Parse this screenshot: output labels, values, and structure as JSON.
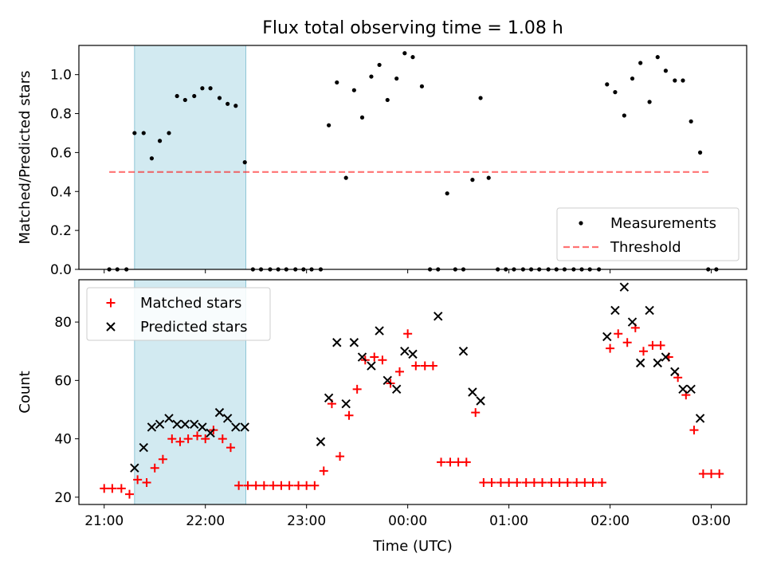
{
  "figure": {
    "title": "Flux total observing time = 1.08 h"
  },
  "chart_data": [
    {
      "type": "scatter",
      "name": "top",
      "xlabel": "",
      "ylabel": "Matched/Predicted stars",
      "xlim": [
        -0.25,
        6.35
      ],
      "ylim": [
        0,
        1.15
      ],
      "yticks": [
        0.0,
        0.2,
        0.4,
        0.6,
        0.8,
        1.0
      ],
      "ytick_labels": [
        "0.0",
        "0.2",
        "0.4",
        "0.6",
        "0.8",
        "1.0"
      ],
      "xticks": [
        0,
        1,
        2,
        3,
        4,
        5,
        6
      ],
      "shaded_span": {
        "x": [
          0.3,
          1.4
        ],
        "color": "#add8e6"
      },
      "threshold": {
        "y": 0.5,
        "x": [
          0.05,
          6.0
        ],
        "color": "#ff0000"
      },
      "legend": {
        "placement": "lower right",
        "entries": [
          "Measurements",
          "Threshold"
        ]
      },
      "series": [
        {
          "name": "Measurements",
          "marker": "dot",
          "color": "#000000",
          "x": [
            0.05,
            0.13,
            0.22,
            0.3,
            0.39,
            0.47,
            0.55,
            0.64,
            0.72,
            0.8,
            0.89,
            0.97,
            1.05,
            1.14,
            1.22,
            1.3,
            1.39,
            1.47,
            1.55,
            1.64,
            1.72,
            1.8,
            1.89,
            1.97,
            2.05,
            2.14,
            2.22,
            2.3,
            2.39,
            2.47,
            2.55,
            2.64,
            2.72,
            2.8,
            2.89,
            2.97,
            3.05,
            3.14,
            3.22,
            3.3,
            3.39,
            3.47,
            3.55,
            3.64,
            3.72,
            3.8,
            3.89,
            3.97,
            4.05,
            4.14,
            4.22,
            4.3,
            4.39,
            4.47,
            4.55,
            4.64,
            4.72,
            4.8,
            4.89,
            4.97,
            5.05,
            5.14,
            5.22,
            5.3,
            5.39,
            5.47,
            5.55,
            5.64,
            5.72,
            5.8,
            5.89,
            5.97,
            6.05
          ],
          "y": [
            0.0,
            0.0,
            0.0,
            0.7,
            0.7,
            0.57,
            0.66,
            0.7,
            0.89,
            0.87,
            0.89,
            0.93,
            0.93,
            0.88,
            0.85,
            0.84,
            0.55,
            0.0,
            0.0,
            0.0,
            0.0,
            0.0,
            0.0,
            0.0,
            0.0,
            0.0,
            0.74,
            0.96,
            0.47,
            0.92,
            0.78,
            0.99,
            1.05,
            0.87,
            0.98,
            1.11,
            1.09,
            0.94,
            0.0,
            0.0,
            0.39,
            0.0,
            0.0,
            0.46,
            0.88,
            0.47,
            0.0,
            0.0,
            0.0,
            0.0,
            0.0,
            0.0,
            0.0,
            0.0,
            0.0,
            0.0,
            0.0,
            0.0,
            0.0,
            0.95,
            0.91,
            0.79,
            0.98,
            1.06,
            0.86,
            1.09,
            1.02,
            0.97,
            0.97,
            0.76,
            0.6,
            0.0,
            0.0
          ]
        }
      ]
    },
    {
      "type": "scatter",
      "name": "bottom",
      "xlabel": "Time (UTC)",
      "ylabel": "Count",
      "xlim": [
        -0.25,
        6.35
      ],
      "ylim": [
        17.5,
        94.5
      ],
      "yticks": [
        20,
        40,
        60,
        80
      ],
      "ytick_labels": [
        "20",
        "40",
        "60",
        "80"
      ],
      "xticks": [
        0,
        1,
        2,
        3,
        4,
        5,
        6
      ],
      "xtick_labels": [
        "21:00",
        "22:00",
        "23:00",
        "00:00",
        "01:00",
        "02:00",
        "03:00"
      ],
      "shaded_span": {
        "x": [
          0.3,
          1.4
        ],
        "color": "#add8e6"
      },
      "legend": {
        "placement": "upper left",
        "entries": [
          "Matched stars",
          "Predicted stars"
        ]
      },
      "series": [
        {
          "name": "Matched stars",
          "marker": "plus",
          "color": "#ff0000",
          "x": [
            0.0,
            0.08,
            0.17,
            0.25,
            0.33,
            0.42,
            0.5,
            0.58,
            0.67,
            0.75,
            0.83,
            0.92,
            1.0,
            1.08,
            1.17,
            1.25,
            1.33,
            1.42,
            1.5,
            1.58,
            1.67,
            1.75,
            1.83,
            1.92,
            2.0,
            2.08,
            2.17,
            2.25,
            2.33,
            2.42,
            2.5,
            2.58,
            2.67,
            2.75,
            2.83,
            2.92,
            3.0,
            3.08,
            3.17,
            3.25,
            3.33,
            3.42,
            3.5,
            3.58,
            3.67,
            3.75,
            3.83,
            3.92,
            4.0,
            4.08,
            4.17,
            4.25,
            4.33,
            4.42,
            4.5,
            4.58,
            4.67,
            4.75,
            4.83,
            4.92,
            5.0,
            5.08,
            5.17,
            5.25,
            5.33,
            5.42,
            5.5,
            5.58,
            5.67,
            5.75,
            5.83,
            5.92,
            6.0,
            6.08
          ],
          "y": [
            23,
            23,
            23,
            21,
            26,
            25,
            30,
            33,
            40,
            39,
            40,
            41,
            40,
            43,
            40,
            37,
            24,
            24,
            24,
            24,
            24,
            24,
            24,
            24,
            24,
            24,
            29,
            52,
            34,
            48,
            57,
            67,
            68,
            67,
            59,
            63,
            76,
            65,
            65,
            65,
            32,
            32,
            32,
            32,
            49,
            25,
            25,
            25,
            25,
            25,
            25,
            25,
            25,
            25,
            25,
            25,
            25,
            25,
            25,
            25,
            71,
            76,
            73,
            78,
            70,
            72,
            72,
            68,
            61,
            55,
            43,
            28,
            28,
            28
          ]
        },
        {
          "name": "Predicted stars",
          "marker": "x",
          "color": "#000000",
          "x": [
            0.3,
            0.39,
            0.47,
            0.55,
            0.64,
            0.72,
            0.8,
            0.89,
            0.97,
            1.05,
            1.14,
            1.22,
            1.3,
            1.39,
            2.14,
            2.22,
            2.3,
            2.39,
            2.47,
            2.55,
            2.64,
            2.72,
            2.8,
            2.89,
            2.97,
            3.05,
            3.3,
            3.55,
            3.64,
            3.72,
            4.97,
            5.05,
            5.14,
            5.22,
            5.3,
            5.39,
            5.47,
            5.55,
            5.64,
            5.72,
            5.8,
            5.89
          ],
          "y": [
            30,
            37,
            44,
            45,
            47,
            45,
            45,
            45,
            44,
            42,
            49,
            47,
            44,
            44,
            39,
            54,
            73,
            52,
            73,
            68,
            65,
            77,
            60,
            57,
            70,
            69,
            82,
            70,
            56,
            53,
            75,
            84,
            92,
            80,
            66,
            84,
            66,
            68,
            63,
            57,
            57,
            47
          ]
        }
      ]
    }
  ]
}
